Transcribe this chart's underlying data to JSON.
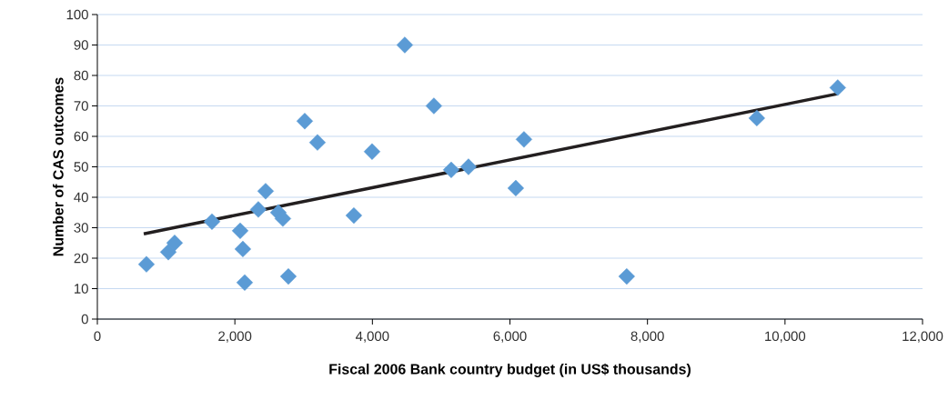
{
  "chart_data": {
    "type": "scatter",
    "xlabel": "Fiscal 2006 Bank country budget (in US$ thousands)",
    "ylabel": "Number of CAS outcomes",
    "marker": "diamond",
    "grid": "y",
    "xlim": [
      0,
      12000
    ],
    "ylim": [
      0,
      100
    ],
    "xticks": [
      0,
      {
        "value": 2000,
        "label": "2,000"
      },
      {
        "value": 4000,
        "label": "4,000"
      },
      {
        "value": 6000,
        "label": "6,000"
      },
      {
        "value": 8000,
        "label": "8,000"
      },
      {
        "value": 10000,
        "label": "10,000"
      },
      {
        "value": 12000,
        "label": "12,000"
      }
    ],
    "yticks": [
      0,
      10,
      20,
      30,
      40,
      50,
      60,
      70,
      80,
      90,
      100
    ],
    "series": [
      {
        "color": "#5b9bd5",
        "x": [
          714,
          1032,
          1124,
          1667,
          2077,
          2116,
          2143,
          2341,
          2447,
          2632,
          2698,
          2778,
          3016,
          3201,
          3730,
          3995,
          4471,
          4894,
          5146,
          5397,
          6085,
          6204,
          7698,
          9590,
          10767
        ],
        "values": [
          18,
          22,
          25,
          32,
          29,
          23,
          12,
          36,
          42,
          35,
          33,
          14,
          65,
          58,
          34,
          55,
          90,
          70,
          49,
          50,
          43,
          59,
          14,
          66,
          76
        ]
      },
      {
        "type": "line",
        "color": "#231f20",
        "marker": "none",
        "line_style": "solid",
        "x": [
          675,
          10767
        ],
        "values": [
          28,
          74
        ]
      }
    ]
  }
}
